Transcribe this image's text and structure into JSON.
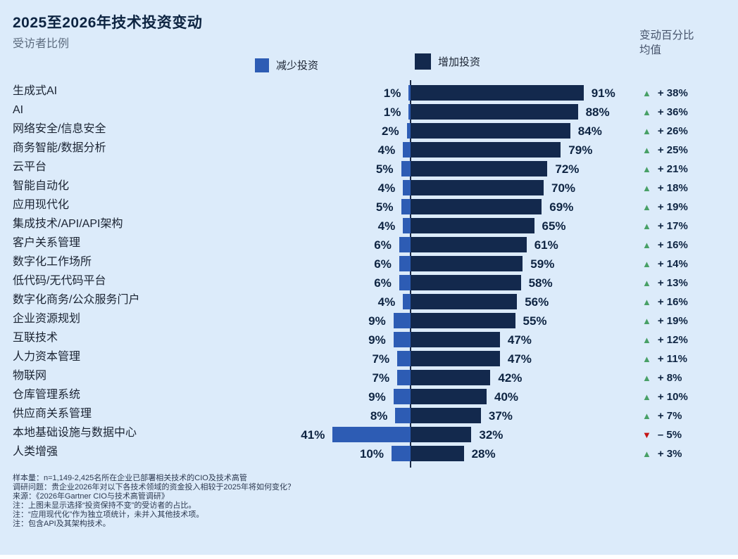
{
  "title": "2025至2026年技术投资变动",
  "subtitle": "受访者比例",
  "legend": {
    "decrease_label": "减少投资",
    "increase_label": "增加投资"
  },
  "right_header_line1": "变动百分比",
  "right_header_line2": "均值",
  "colors": {
    "background": "#dcebfa",
    "decrease_bar": "#2d5cb4",
    "increase_bar": "#13294d",
    "up_triangle": "#48a066",
    "down_triangle": "#c41414"
  },
  "chart_data": {
    "type": "bar",
    "orientation": "horizontal-diverging",
    "value_suffix": "%",
    "xlim": [
      -50,
      100
    ],
    "legend_position": "top",
    "grid": false,
    "categories": [
      "生成式AI",
      "AI",
      "网络安全/信息安全",
      "商务智能/数据分析",
      "云平台",
      "智能自动化",
      "应用现代化",
      "集成技术/API/API架构",
      "客户关系管理",
      "数字化工作场所",
      "低代码/无代码平台",
      "数字化商务/公众服务门户",
      "企业资源规划",
      "互联技术",
      "人力资本管理",
      "物联网",
      "仓库管理系统",
      "供应商关系管理",
      "本地基础设施与数据中心",
      "人类增强"
    ],
    "series": [
      {
        "name": "减少投资",
        "color": "#2d5cb4",
        "values": [
          1,
          1,
          2,
          4,
          5,
          4,
          5,
          4,
          6,
          6,
          6,
          4,
          9,
          9,
          7,
          7,
          9,
          8,
          41,
          10
        ]
      },
      {
        "name": "增加投资",
        "color": "#13294d",
        "values": [
          91,
          88,
          84,
          79,
          72,
          70,
          69,
          65,
          61,
          59,
          58,
          56,
          55,
          47,
          47,
          42,
          40,
          37,
          32,
          28
        ]
      }
    ],
    "mean_change": {
      "label": "变动百分比均值",
      "values": [
        38,
        36,
        26,
        25,
        21,
        18,
        19,
        17,
        16,
        14,
        13,
        16,
        19,
        12,
        11,
        8,
        10,
        7,
        -5,
        3
      ]
    }
  },
  "footnotes": [
    "样本量：n=1,149-2,425名所在企业已部署相关技术的CIO及技术高管",
    "调研问题：贵企业2026年对以下各技术领域的资金投入相较于2025年将如何变化？",
    "来源：《2026年Gartner CIO与技术高管调研》",
    "注：上图未显示选择“投资保持不变”的受访者的占比。",
    "注：“应用现代化”作为独立项统计，未并入其他技术项。",
    "注：包含API及其架构技术。"
  ]
}
